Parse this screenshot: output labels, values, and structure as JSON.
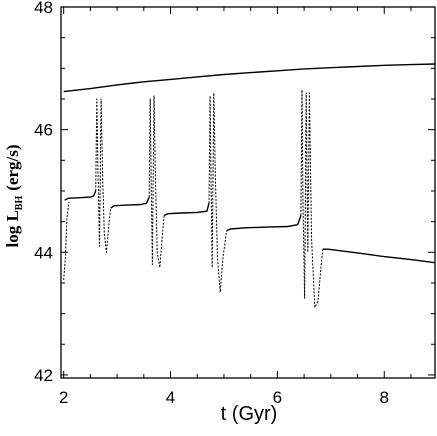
{
  "chart_data": {
    "type": "line",
    "xlabel": "t (Gyr)",
    "ylabel": {
      "main": "log L",
      "sub": "BH",
      "unit": "(erg/s)"
    },
    "xlim": [
      1.95,
      8.95
    ],
    "ylim": [
      41.95,
      48.0
    ],
    "xticks": [
      "2",
      "4",
      "6",
      "8"
    ],
    "xtick_values": [
      2,
      4,
      6,
      8
    ],
    "yticks": [
      "42",
      "44",
      "46",
      "48"
    ],
    "ytick_values": [
      42,
      44,
      46,
      48
    ],
    "grid": false,
    "series": [
      {
        "style": "solid",
        "x": [
          2.0,
          2.5,
          3.0,
          3.5,
          4.0,
          4.5,
          5.0,
          5.5,
          6.0,
          6.5,
          7.0,
          7.5,
          8.0,
          8.5,
          8.95
        ],
        "y": [
          46.62,
          46.67,
          46.73,
          46.78,
          46.82,
          46.86,
          46.9,
          46.93,
          46.96,
          46.99,
          47.01,
          47.03,
          47.05,
          47.06,
          47.07
        ]
      },
      {
        "style": "solid",
        "x": [
          2.02,
          2.08,
          2.3,
          2.5,
          2.56,
          2.6
        ],
        "y": [
          44.85,
          44.88,
          44.89,
          44.9,
          44.92,
          45.0
        ]
      },
      {
        "style": "solid",
        "x": [
          2.88,
          2.95,
          3.2,
          3.45,
          3.55,
          3.6
        ],
        "y": [
          44.72,
          44.76,
          44.77,
          44.78,
          44.8,
          44.9
        ]
      },
      {
        "style": "solid",
        "x": [
          3.88,
          3.95,
          4.2,
          4.5,
          4.68,
          4.72
        ],
        "y": [
          44.6,
          44.63,
          44.64,
          44.65,
          44.67,
          44.8
        ]
      },
      {
        "style": "solid",
        "x": [
          5.05,
          5.12,
          5.4,
          5.8,
          6.2,
          6.38,
          6.44
        ],
        "y": [
          44.35,
          44.38,
          44.4,
          44.41,
          44.42,
          44.45,
          44.6
        ]
      },
      {
        "style": "solid",
        "x": [
          6.85,
          6.95,
          7.5,
          8.0,
          8.5,
          8.95
        ],
        "y": [
          44.05,
          44.05,
          43.99,
          43.93,
          43.88,
          43.83
        ]
      },
      {
        "style": "dotted",
        "x": [
          2.0,
          2.03,
          2.06,
          2.1
        ],
        "y": [
          43.55,
          43.9,
          44.55,
          44.82
        ]
      },
      {
        "style": "dotted",
        "x": [
          2.6,
          2.62,
          2.64,
          2.67,
          2.7,
          2.73,
          2.76,
          2.8,
          2.85,
          2.88
        ],
        "y": [
          45.0,
          46.5,
          45.4,
          44.1,
          46.5,
          45.2,
          44.3,
          44.0,
          44.5,
          44.72
        ]
      },
      {
        "style": "dotted",
        "x": [
          3.6,
          3.62,
          3.64,
          3.66,
          3.69,
          3.72,
          3.75,
          3.8,
          3.85,
          3.88
        ],
        "y": [
          44.9,
          46.5,
          45.0,
          43.8,
          46.55,
          45.1,
          44.0,
          43.75,
          44.3,
          44.6
        ]
      },
      {
        "style": "dotted",
        "x": [
          4.72,
          4.74,
          4.76,
          4.78,
          4.81,
          4.84,
          4.88,
          4.93,
          4.98,
          5.05
        ],
        "y": [
          44.8,
          46.55,
          45.1,
          43.75,
          46.6,
          45.2,
          43.9,
          43.35,
          43.9,
          44.35
        ]
      },
      {
        "style": "dotted",
        "x": [
          6.44,
          6.46,
          6.48,
          6.51,
          6.54,
          6.57,
          6.6,
          6.64,
          6.7,
          6.76,
          6.82,
          6.85
        ],
        "y": [
          44.6,
          46.65,
          44.8,
          43.25,
          46.6,
          44.0,
          46.6,
          44.2,
          43.1,
          43.2,
          43.8,
          44.05
        ]
      }
    ]
  }
}
